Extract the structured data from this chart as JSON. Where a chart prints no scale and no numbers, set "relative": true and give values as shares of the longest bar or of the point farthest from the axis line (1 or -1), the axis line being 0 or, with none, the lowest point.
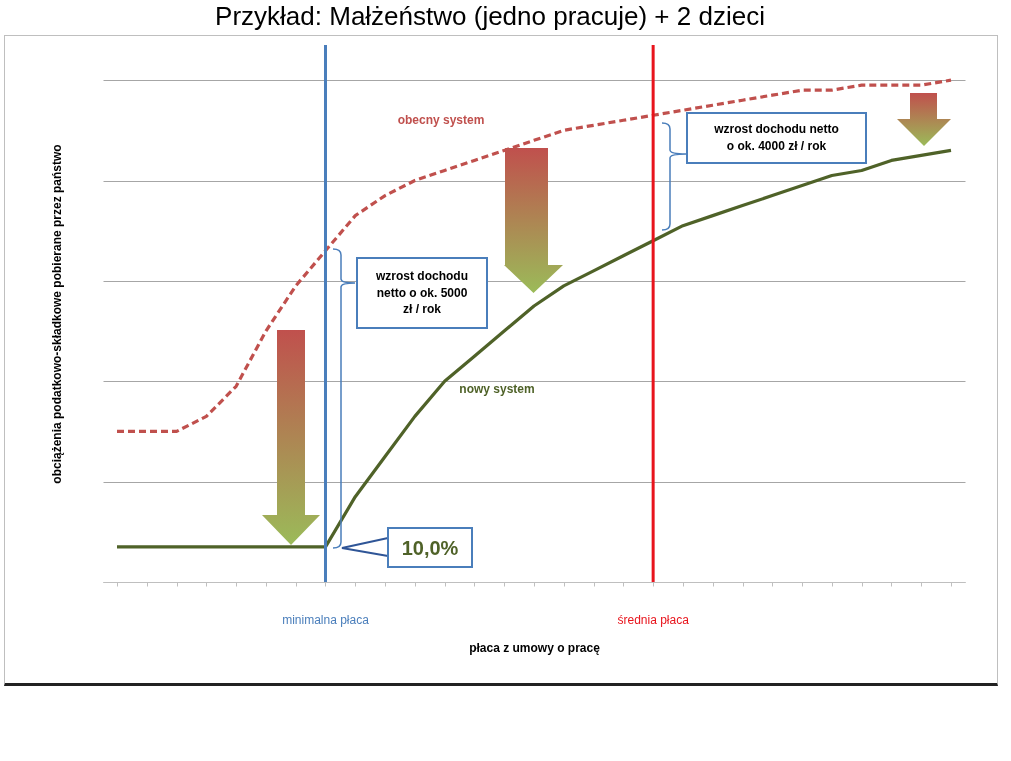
{
  "chart_data": {
    "type": "line",
    "title": "Przykład: Małżeństwo (jedno pracuje) + 2 dzieci",
    "xlabel": "płaca z umowy o pracę",
    "ylabel": "obciążenia podatkowo-składkowe pobierane przez państwo",
    "relative": true,
    "categories": [
      null,
      null,
      null,
      null,
      null,
      null,
      null,
      null,
      null,
      null,
      null,
      null,
      null,
      null,
      null,
      null,
      null,
      null,
      null,
      null,
      null,
      null,
      null,
      null,
      null,
      null,
      null,
      null,
      null
    ],
    "series": [
      {
        "name": "obecny system",
        "color": "#c0504d",
        "line_style": "dashed",
        "values": [
          0.3,
          0.3,
          0.3,
          0.33,
          0.39,
          0.5,
          0.59,
          0.66,
          0.73,
          0.77,
          0.8,
          0.82,
          0.84,
          0.86,
          0.88,
          0.9,
          0.91,
          0.92,
          0.93,
          0.94,
          0.95,
          0.96,
          0.97,
          0.98,
          0.98,
          0.99,
          0.99,
          0.99,
          1
        ]
      },
      {
        "name": "nowy system",
        "color": "#4f6228",
        "line_style": "solid",
        "values": [
          0.07,
          0.07,
          0.07,
          0.07,
          0.07,
          0.07,
          0.07,
          0.07,
          0.17,
          0.25,
          0.33,
          0.4,
          0.45,
          0.5,
          0.55,
          0.59,
          0.62,
          0.65,
          0.68,
          0.71,
          0.73,
          0.75,
          0.77,
          0.79,
          0.81,
          0.82,
          0.84,
          0.85,
          0.86
        ]
      }
    ],
    "annotations": [
      "wzrost dochodu netto o ok. 5000 zł / rok",
      "wzrost dochodu netto o ok. 4000 zł / rok",
      "10,0%",
      "minimalna płaca",
      "średnia płaca"
    ],
    "grid": "y",
    "marker": "none"
  }
}
